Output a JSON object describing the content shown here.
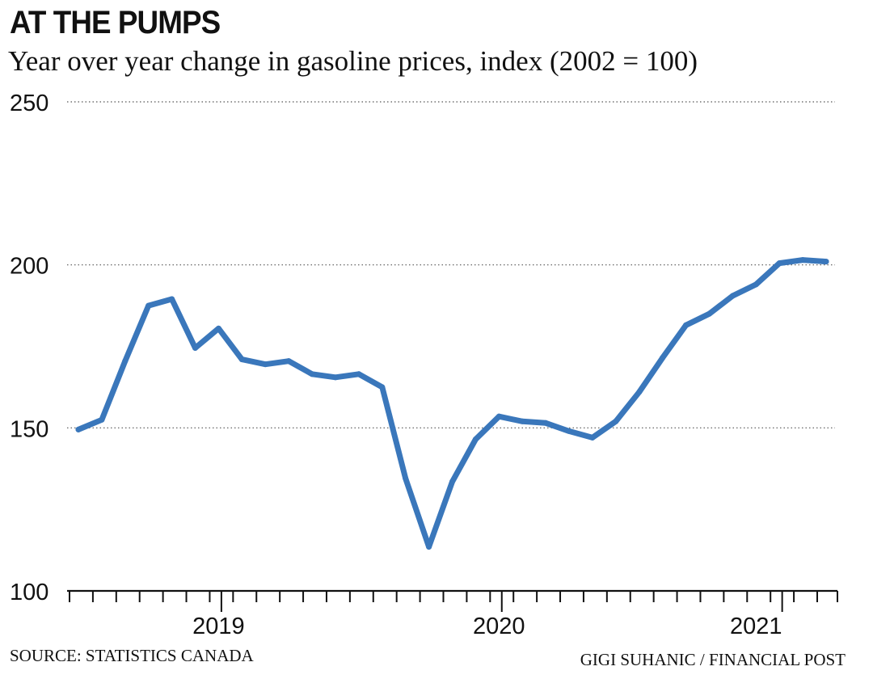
{
  "chart_data": {
    "type": "line",
    "title": "AT THE PUMPS",
    "subtitle": "Year over year change in gasoline prices, index (2002 = 100)",
    "xlabel": "",
    "ylabel": "",
    "ylim": [
      100,
      250
    ],
    "yticks": [
      "250",
      "200",
      "150",
      "100"
    ],
    "ytick_values": [
      250,
      200,
      150,
      100
    ],
    "grid": true,
    "year_labels": [
      {
        "label": "2019",
        "month_index": 6
      },
      {
        "label": "2020",
        "month_index": 18
      },
      {
        "label": "2021",
        "month_index": 29
      }
    ],
    "months_per_tick": 1,
    "series": [
      {
        "name": "Gasoline price index",
        "color": "#3a77bb",
        "values": [
          149.5,
          152.5,
          170.5,
          187.5,
          189.5,
          174.5,
          180.5,
          171.0,
          169.5,
          170.5,
          166.5,
          165.5,
          166.5,
          162.5,
          134.5,
          113.5,
          133.5,
          146.5,
          153.5,
          152.0,
          151.5,
          149.0,
          147.0,
          152.0,
          161.0,
          171.5,
          181.5,
          185.0,
          190.5,
          194.0,
          200.5,
          201.5,
          201.0
        ]
      }
    ]
  },
  "footer": {
    "source": "SOURCE: STATISTICS CANADA",
    "credit": "GIGI SUHANIC   / FINANCIAL POST"
  }
}
